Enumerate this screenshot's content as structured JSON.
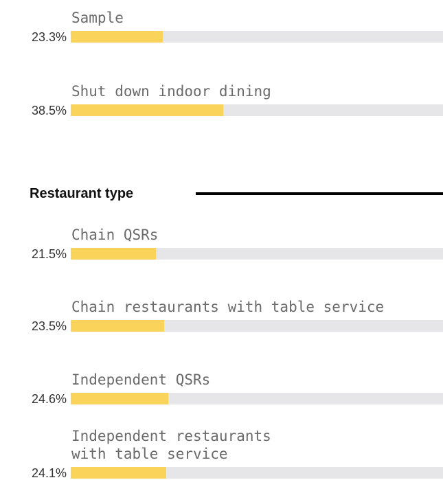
{
  "chart_data": [
    {
      "type": "bar",
      "orientation": "horizontal",
      "categories": [
        "Sample",
        "Shut down indoor dining"
      ],
      "values": [
        23.3,
        38.5
      ],
      "value_labels": [
        "23.3%",
        "38.5%"
      ],
      "color": "#f9d35a",
      "track_color": "#e6e6e8",
      "xlim": [
        0,
        94
      ]
    },
    {
      "type": "bar",
      "orientation": "horizontal",
      "title": "Restaurant type",
      "categories": [
        "Chain QSRs",
        "Chain restaurants with table service",
        "Independent QSRs",
        "Independent restaurants with table service"
      ],
      "values": [
        21.5,
        23.5,
        24.6,
        24.1
      ],
      "value_labels": [
        "21.5%",
        "23.5%",
        "24.6%",
        "24.1%"
      ],
      "color": "#f9d35a",
      "track_color": "#e6e6e8",
      "xlim": [
        0,
        94
      ]
    }
  ]
}
